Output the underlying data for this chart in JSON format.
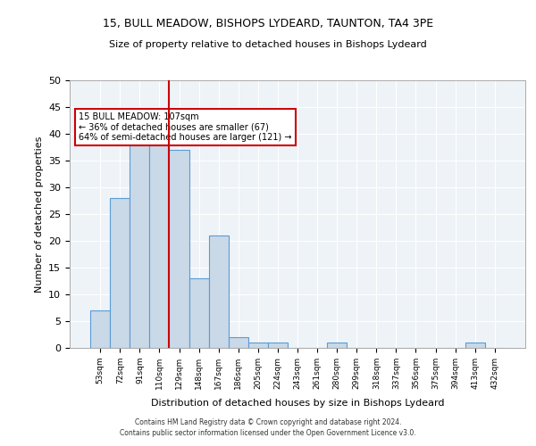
{
  "title1": "15, BULL MEADOW, BISHOPS LYDEARD, TAUNTON, TA4 3PE",
  "title2": "Size of property relative to detached houses in Bishops Lydeard",
  "xlabel": "Distribution of detached houses by size in Bishops Lydeard",
  "ylabel": "Number of detached properties",
  "categories": [
    "53sqm",
    "72sqm",
    "91sqm",
    "110sqm",
    "129sqm",
    "148sqm",
    "167sqm",
    "186sqm",
    "205sqm",
    "224sqm",
    "243sqm",
    "261sqm",
    "280sqm",
    "299sqm",
    "318sqm",
    "337sqm",
    "356sqm",
    "375sqm",
    "394sqm",
    "413sqm",
    "432sqm"
  ],
  "values": [
    7,
    28,
    38,
    39,
    37,
    13,
    21,
    2,
    1,
    1,
    0,
    0,
    1,
    0,
    0,
    0,
    0,
    0,
    0,
    1,
    0
  ],
  "bar_color": "#c9d9e8",
  "bar_edge_color": "#5b9bd5",
  "vline_x": 3,
  "vline_color": "#cc0000",
  "annotation_text": "15 BULL MEADOW: 107sqm\n← 36% of detached houses are smaller (67)\n64% of semi-detached houses are larger (121) →",
  "annotation_box_color": "white",
  "annotation_box_edge_color": "#cc0000",
  "ylim": [
    0,
    50
  ],
  "yticks": [
    0,
    5,
    10,
    15,
    20,
    25,
    30,
    35,
    40,
    45,
    50
  ],
  "bg_color": "#eef3f8",
  "footer1": "Contains HM Land Registry data © Crown copyright and database right 2024.",
  "footer2": "Contains public sector information licensed under the Open Government Licence v3.0."
}
